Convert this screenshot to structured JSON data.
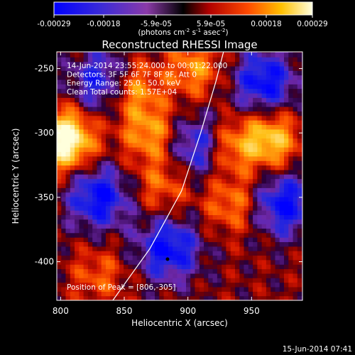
{
  "chart_data": {
    "type": "heatmap",
    "title": "Reconstructed RHESSI Image",
    "xlabel": "Heliocentric X (arcsec)",
    "ylabel": "Heliocentric Y (arcsec)",
    "xlim": [
      797,
      990
    ],
    "ylim": [
      -430,
      -237
    ],
    "xticks": [
      800,
      850,
      900,
      950
    ],
    "yticks": [
      -250,
      -300,
      -350,
      -400
    ],
    "colorbar": {
      "ticks": [
        "-0.00029",
        "-0.00018",
        "-5.9e-05",
        "5.9e-05",
        "0.00018",
        "0.00029"
      ],
      "unit_line": "(photons cm^-2 s^-1 asec^-2)",
      "range": [
        -0.00029,
        0.00029
      ]
    },
    "annotations": [
      "14-Jun-2014 23:55:24.000 to 00:01:22.000",
      "Detectors: 3F 5F 6F 7F 8F 9F, Att 0",
      "Energy Range: 25.0 - 50.0 keV",
      "Clean    Total counts: 1.57E+04"
    ],
    "peak_label": "Position of Peak = [806,-305]",
    "peak": [
      806,
      -305
    ],
    "marker": [
      884,
      -398
    ],
    "limb_curve": [
      [
        841,
        -430
      ],
      [
        870,
        -390
      ],
      [
        895,
        -345
      ],
      [
        910,
        -300
      ],
      [
        922,
        -260
      ],
      [
        928,
        -237
      ]
    ]
  },
  "footer": {
    "timestamp": "15-Jun-2014 07:41"
  }
}
